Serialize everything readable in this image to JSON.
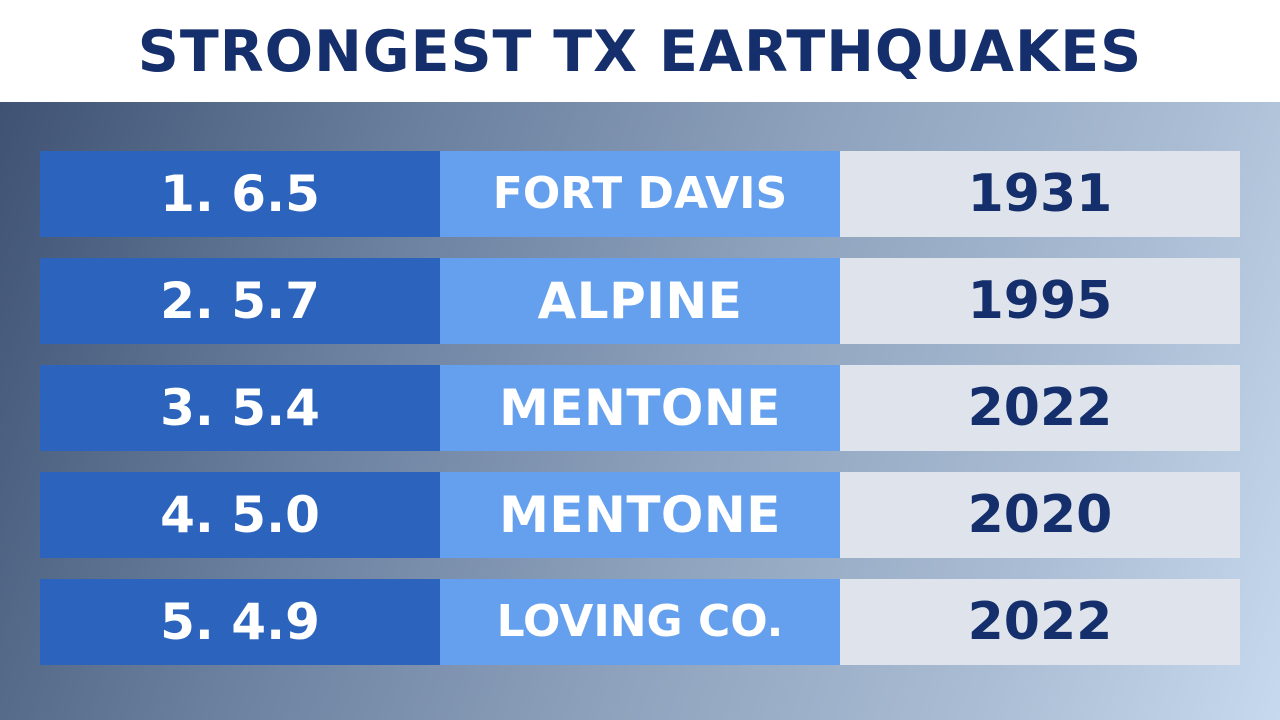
{
  "title": "STRONGEST TX EARTHQUAKES",
  "rows": [
    {
      "rank": "1. 6.5",
      "place": "FORT DAVIS",
      "year": "1931"
    },
    {
      "rank": "2. 5.7",
      "place": "ALPINE",
      "year": "1995"
    },
    {
      "rank": "3. 5.4",
      "place": "MENTONE",
      "year": "2022"
    },
    {
      "rank": "4. 5.0",
      "place": "MENTONE",
      "year": "2020"
    },
    {
      "rank": "5. 4.9",
      "place": "LOVING CO.",
      "year": "2022"
    }
  ],
  "colors": {
    "title_text": "#142f6b",
    "rank_cell": "#2b63bd",
    "place_cell": "#65a0ee",
    "year_cell": "#dfe4ec",
    "year_text": "#142f6b"
  }
}
